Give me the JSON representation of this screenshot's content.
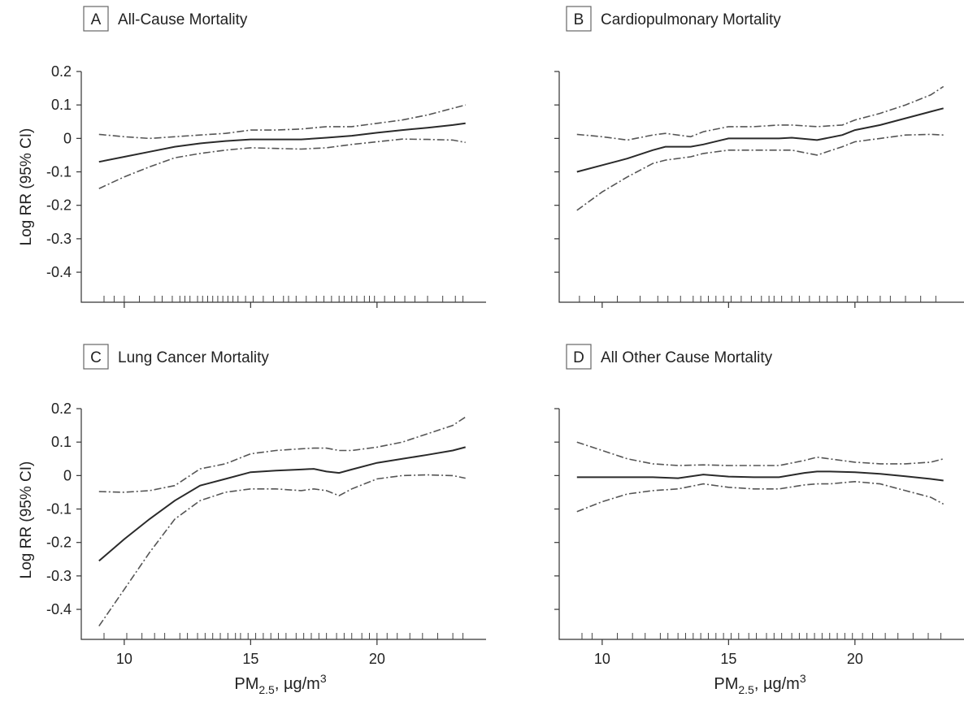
{
  "figure": {
    "xlabel_main": "PM",
    "xlabel_sub": "2.5",
    "xlabel_rest": ", µg/m",
    "xlabel_sup": "3",
    "ylabel": "Log RR (95% CI)"
  },
  "chart_data": [
    {
      "type": "line",
      "letter": "A",
      "title": "All-Cause Mortality",
      "xlim": [
        8.3,
        23.8
      ],
      "ylim": [
        -0.48,
        0.2
      ],
      "xticks": [
        10,
        15,
        20
      ],
      "yticks": [
        0.2,
        0.1,
        0,
        -0.1,
        -0.2,
        -0.3,
        -0.4
      ],
      "ytick_labels": [
        "0.2",
        "0.1",
        "0",
        "-0.1",
        "-0.2",
        "-0.3",
        "-0.4"
      ],
      "show_yticklabels": true,
      "show_xticklabels": false,
      "series": [
        {
          "role": "estimate",
          "x": [
            9,
            10,
            11,
            12,
            13,
            14,
            15,
            16,
            17,
            18,
            19,
            20,
            21,
            22,
            23,
            23.5
          ],
          "y": [
            -0.07,
            -0.055,
            -0.04,
            -0.025,
            -0.015,
            -0.008,
            -0.003,
            -0.003,
            -0.003,
            0.002,
            0.008,
            0.017,
            0.025,
            0.032,
            0.04,
            0.045
          ]
        },
        {
          "role": "upper_ci",
          "x": [
            9,
            10,
            11,
            12,
            13,
            14,
            15,
            16,
            17,
            18,
            19,
            20,
            21,
            22,
            23,
            23.5
          ],
          "y": [
            0.012,
            0.005,
            0.0,
            0.005,
            0.01,
            0.015,
            0.025,
            0.025,
            0.028,
            0.035,
            0.035,
            0.045,
            0.055,
            0.07,
            0.09,
            0.1
          ]
        },
        {
          "role": "lower_ci",
          "x": [
            9,
            10,
            11,
            12,
            13,
            14,
            15,
            16,
            17,
            18,
            19,
            20,
            21,
            22,
            23,
            23.5
          ],
          "y": [
            -0.15,
            -0.115,
            -0.085,
            -0.058,
            -0.045,
            -0.035,
            -0.028,
            -0.03,
            -0.032,
            -0.028,
            -0.018,
            -0.01,
            -0.002,
            -0.003,
            -0.005,
            -0.012
          ]
        }
      ],
      "rug": [
        9.2,
        9.6,
        10.0,
        10.6,
        11.2,
        11.5,
        11.9,
        12.2,
        12.4,
        12.6,
        12.9,
        13.1,
        13.3,
        13.5,
        13.7,
        13.9,
        14.1,
        14.3,
        14.5,
        14.8,
        15.1,
        15.5,
        15.9,
        16.3,
        16.5,
        16.8,
        17.2,
        17.6,
        17.9,
        18.2,
        18.5,
        18.7,
        19.0,
        19.2,
        19.5,
        19.7,
        19.9,
        20.3,
        20.7,
        21.1,
        21.5,
        22.0,
        22.6,
        23.1,
        23.4
      ]
    },
    {
      "type": "line",
      "letter": "B",
      "title": "Cardiopulmonary Mortality",
      "xlim": [
        8.3,
        23.8
      ],
      "ylim": [
        -0.48,
        0.2
      ],
      "xticks": [
        10,
        15,
        20
      ],
      "yticks": [
        0.2,
        0.1,
        0,
        -0.1,
        -0.2,
        -0.3,
        -0.4
      ],
      "ytick_labels": [
        "0.2",
        "0.1",
        "0",
        "-0.1",
        "-0.2",
        "-0.3",
        "-0.4"
      ],
      "show_yticklabels": false,
      "show_xticklabels": false,
      "series": [
        {
          "role": "estimate",
          "x": [
            9,
            10,
            11,
            12,
            12.5,
            13.5,
            14,
            15,
            16,
            17,
            17.5,
            18.5,
            19.5,
            20,
            21,
            22,
            23,
            23.5
          ],
          "y": [
            -0.1,
            -0.08,
            -0.06,
            -0.035,
            -0.025,
            -0.025,
            -0.018,
            0.0,
            0.0,
            0.0,
            0.002,
            -0.005,
            0.01,
            0.025,
            0.04,
            0.06,
            0.08,
            0.09
          ]
        },
        {
          "role": "upper_ci",
          "x": [
            9,
            10,
            11,
            12,
            12.5,
            13.5,
            14,
            15,
            16,
            17,
            17.5,
            18.5,
            19.5,
            20,
            21,
            22,
            23,
            23.5
          ],
          "y": [
            0.012,
            0.005,
            -0.005,
            0.01,
            0.015,
            0.005,
            0.02,
            0.035,
            0.035,
            0.04,
            0.04,
            0.035,
            0.04,
            0.055,
            0.075,
            0.1,
            0.13,
            0.155
          ]
        },
        {
          "role": "lower_ci",
          "x": [
            9,
            10,
            11,
            12,
            12.5,
            13.5,
            14,
            15,
            16,
            17,
            17.5,
            18.5,
            19.5,
            20,
            21,
            22,
            23,
            23.5
          ],
          "y": [
            -0.215,
            -0.16,
            -0.115,
            -0.075,
            -0.065,
            -0.055,
            -0.045,
            -0.035,
            -0.035,
            -0.035,
            -0.035,
            -0.05,
            -0.025,
            -0.01,
            0.0,
            0.01,
            0.012,
            0.01
          ]
        }
      ],
      "rug": [
        9.1,
        9.7,
        10.6,
        11.5,
        12.2,
        12.6,
        13.1,
        13.6,
        13.9,
        14.2,
        14.5,
        14.8,
        15.1,
        15.5,
        15.9,
        16.3,
        16.6,
        16.8,
        17.1,
        17.5,
        17.8,
        18.2,
        18.6,
        18.9,
        19.3,
        19.7,
        20.1,
        20.5,
        21.0,
        21.4,
        22.0,
        22.6,
        23.2
      ]
    },
    {
      "type": "line",
      "letter": "C",
      "title": "Lung Cancer Mortality",
      "xlim": [
        8.3,
        23.8
      ],
      "ylim": [
        -0.48,
        0.2
      ],
      "xticks": [
        10,
        15,
        20
      ],
      "yticks": [
        0.2,
        0.1,
        0,
        -0.1,
        -0.2,
        -0.3,
        -0.4
      ],
      "ytick_labels": [
        "0.2",
        "0.1",
        "0",
        "-0.1",
        "-0.2",
        "-0.3",
        "-0.4"
      ],
      "xtick_labels": [
        "10",
        "15",
        "20"
      ],
      "show_yticklabels": true,
      "show_xticklabels": true,
      "series": [
        {
          "role": "estimate",
          "x": [
            9,
            10,
            11,
            12,
            13,
            14,
            15,
            16,
            17,
            17.5,
            18,
            18.5,
            19,
            20,
            21,
            22,
            23,
            23.5
          ],
          "y": [
            -0.255,
            -0.19,
            -0.13,
            -0.075,
            -0.03,
            -0.01,
            0.01,
            0.015,
            0.018,
            0.02,
            0.012,
            0.008,
            0.018,
            0.038,
            0.05,
            0.062,
            0.075,
            0.085
          ]
        },
        {
          "role": "upper_ci",
          "x": [
            9,
            10,
            11,
            12,
            13,
            14,
            15,
            16,
            17,
            17.5,
            18,
            18.5,
            19,
            20,
            21,
            22,
            23,
            23.5
          ],
          "y": [
            -0.048,
            -0.05,
            -0.045,
            -0.03,
            0.02,
            0.035,
            0.065,
            0.075,
            0.08,
            0.082,
            0.082,
            0.075,
            0.075,
            0.085,
            0.1,
            0.125,
            0.15,
            0.175
          ]
        },
        {
          "role": "lower_ci",
          "x": [
            9,
            10,
            11,
            12,
            13,
            14,
            15,
            16,
            17,
            17.5,
            18,
            18.5,
            19,
            20,
            21,
            22,
            23,
            23.5
          ],
          "y": [
            -0.45,
            -0.34,
            -0.23,
            -0.13,
            -0.075,
            -0.05,
            -0.04,
            -0.04,
            -0.045,
            -0.04,
            -0.045,
            -0.06,
            -0.04,
            -0.01,
            0.0,
            0.002,
            0.0,
            -0.008
          ]
        }
      ],
      "rug": [
        9.2,
        10.1,
        10.7,
        11.2,
        11.6,
        12.2,
        12.5,
        12.9,
        13.2,
        13.5,
        13.8,
        14.1,
        14.4,
        14.6,
        14.9,
        15.2,
        15.5,
        15.8,
        16.1,
        16.4,
        16.8,
        17.1,
        17.4,
        17.7,
        18.0,
        18.4,
        18.7,
        19.0,
        19.4,
        19.7,
        20.0,
        20.4,
        20.8,
        21.3,
        21.8,
        22.4,
        23.0,
        23.4
      ]
    },
    {
      "type": "line",
      "letter": "D",
      "title": "All Other Cause Mortality",
      "xlim": [
        8.3,
        23.8
      ],
      "ylim": [
        -0.48,
        0.2
      ],
      "xticks": [
        10,
        15,
        20
      ],
      "yticks": [
        0.2,
        0.1,
        0,
        -0.1,
        -0.2,
        -0.3,
        -0.4
      ],
      "ytick_labels": [
        "0.2",
        "0.1",
        "0",
        "-0.1",
        "-0.2",
        "-0.3",
        "-0.4"
      ],
      "xtick_labels": [
        "10",
        "15",
        "20"
      ],
      "show_yticklabels": false,
      "show_xticklabels": true,
      "series": [
        {
          "role": "estimate",
          "x": [
            9,
            10,
            11,
            12,
            13,
            14,
            15,
            16,
            17,
            18,
            18.5,
            19,
            20,
            21,
            22,
            23,
            23.5
          ],
          "y": [
            -0.005,
            -0.005,
            -0.005,
            -0.005,
            -0.008,
            0.003,
            -0.003,
            -0.005,
            -0.005,
            0.008,
            0.012,
            0.012,
            0.01,
            0.005,
            -0.002,
            -0.01,
            -0.015
          ]
        },
        {
          "role": "upper_ci",
          "x": [
            9,
            10,
            11,
            12,
            13,
            14,
            15,
            16,
            17,
            18,
            18.5,
            19,
            20,
            21,
            22,
            23,
            23.5
          ],
          "y": [
            0.1,
            0.075,
            0.05,
            0.035,
            0.03,
            0.032,
            0.03,
            0.03,
            0.03,
            0.045,
            0.055,
            0.05,
            0.04,
            0.035,
            0.035,
            0.04,
            0.05
          ]
        },
        {
          "role": "lower_ci",
          "x": [
            9,
            10,
            11,
            12,
            13,
            14,
            15,
            16,
            17,
            18,
            18.5,
            19,
            20,
            21,
            22,
            23,
            23.5
          ],
          "y": [
            -0.108,
            -0.078,
            -0.055,
            -0.045,
            -0.04,
            -0.025,
            -0.035,
            -0.04,
            -0.04,
            -0.028,
            -0.025,
            -0.025,
            -0.018,
            -0.025,
            -0.045,
            -0.065,
            -0.085
          ]
        }
      ],
      "rug": [
        9.2,
        9.6,
        10.6,
        11.2,
        11.7,
        12.3,
        12.6,
        13.0,
        13.3,
        13.6,
        13.9,
        14.2,
        14.5,
        14.8,
        15.1,
        15.4,
        15.8,
        16.1,
        16.5,
        16.8,
        17.1,
        17.5,
        17.8,
        18.1,
        18.4,
        18.7,
        19.0,
        19.3,
        19.6,
        19.9,
        20.3,
        20.7,
        21.2,
        21.7,
        22.3,
        22.9,
        23.4
      ]
    }
  ]
}
